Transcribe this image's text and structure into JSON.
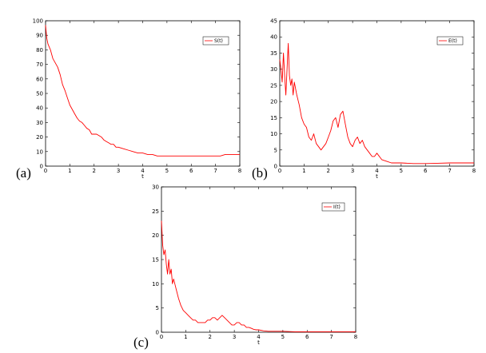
{
  "chart_data": [
    {
      "type": "line",
      "panel_label": "(a)",
      "xlabel": "t",
      "ylabel": "",
      "xlim": [
        0,
        8
      ],
      "ylim": [
        0,
        100
      ],
      "xticks": [
        0,
        1,
        2,
        3,
        4,
        5,
        6,
        7,
        8
      ],
      "yticks": [
        0,
        10,
        20,
        30,
        40,
        50,
        60,
        70,
        80,
        90,
        100
      ],
      "legend_position": "top-right",
      "series": [
        {
          "name": "S(t)",
          "color": "#ff0000",
          "x": [
            0,
            0.05,
            0.1,
            0.2,
            0.3,
            0.4,
            0.5,
            0.6,
            0.7,
            0.8,
            0.9,
            1.0,
            1.1,
            1.2,
            1.3,
            1.4,
            1.5,
            1.6,
            1.7,
            1.8,
            1.9,
            2.0,
            2.1,
            2.2,
            2.3,
            2.4,
            2.5,
            2.6,
            2.7,
            2.8,
            2.9,
            3.0,
            3.2,
            3.4,
            3.6,
            3.8,
            4.0,
            4.2,
            4.4,
            4.6,
            4.8,
            5.0,
            5.2,
            5.4,
            5.6,
            5.8,
            6.0,
            6.2,
            6.4,
            6.6,
            6.8,
            7.0,
            7.2,
            7.4,
            7.6,
            7.8,
            8.0
          ],
          "y": [
            97,
            88,
            84,
            80,
            74,
            71,
            68,
            63,
            56,
            52,
            47,
            42,
            39,
            36,
            33,
            31,
            30,
            28,
            26,
            25,
            22,
            22,
            22,
            21,
            20,
            18,
            17,
            16,
            15,
            15,
            13,
            13,
            12,
            11,
            10,
            9,
            9,
            8,
            8,
            7,
            7,
            7,
            7,
            7,
            7,
            7,
            7,
            7,
            7,
            7,
            7,
            7,
            7,
            8,
            8,
            8,
            8
          ]
        }
      ]
    },
    {
      "type": "line",
      "panel_label": "(b)",
      "xlabel": "t",
      "ylabel": "",
      "xlim": [
        0,
        8
      ],
      "ylim": [
        0,
        45
      ],
      "xticks": [
        0,
        1,
        2,
        3,
        4,
        5,
        6,
        7,
        8
      ],
      "yticks": [
        0,
        5,
        10,
        15,
        20,
        25,
        30,
        35,
        40,
        45
      ],
      "legend_position": "top-right",
      "series": [
        {
          "name": "E(t)",
          "color": "#ff0000",
          "x": [
            0,
            0.05,
            0.1,
            0.15,
            0.2,
            0.25,
            0.3,
            0.35,
            0.4,
            0.45,
            0.5,
            0.55,
            0.6,
            0.7,
            0.8,
            0.9,
            1.0,
            1.1,
            1.2,
            1.3,
            1.4,
            1.5,
            1.6,
            1.7,
            1.8,
            1.9,
            2.0,
            2.1,
            2.2,
            2.3,
            2.4,
            2.5,
            2.6,
            2.7,
            2.8,
            2.9,
            3.0,
            3.1,
            3.2,
            3.3,
            3.4,
            3.5,
            3.6,
            3.7,
            3.8,
            3.9,
            4.0,
            4.2,
            4.4,
            4.6,
            4.8,
            5.0,
            5.5,
            6.0,
            6.5,
            7.0,
            7.5,
            8.0
          ],
          "y": [
            33,
            30,
            26,
            35,
            28,
            22,
            30,
            38,
            28,
            25,
            27,
            22,
            26,
            22,
            19,
            15,
            13,
            12,
            9,
            8,
            10,
            7,
            6,
            5,
            6,
            7,
            9,
            11,
            14,
            15,
            12,
            16,
            17,
            13,
            9,
            7,
            6,
            8,
            9,
            7,
            8,
            6,
            5,
            4,
            3,
            3,
            4,
            2,
            1.5,
            1,
            1,
            1,
            0.8,
            0.8,
            0.9,
            1,
            1,
            1
          ]
        }
      ]
    },
    {
      "type": "line",
      "panel_label": "(c)",
      "xlabel": "t",
      "ylabel": "",
      "xlim": [
        0,
        8
      ],
      "ylim": [
        0,
        30
      ],
      "xticks": [
        0,
        1,
        2,
        3,
        4,
        5,
        6,
        7,
        8
      ],
      "yticks": [
        0,
        5,
        10,
        15,
        20,
        25,
        30
      ],
      "legend_position": "top-right",
      "series": [
        {
          "name": "I(t)",
          "color": "#ff0000",
          "x": [
            0,
            0.05,
            0.1,
            0.15,
            0.2,
            0.25,
            0.3,
            0.35,
            0.4,
            0.45,
            0.5,
            0.55,
            0.6,
            0.7,
            0.8,
            0.9,
            1.0,
            1.1,
            1.2,
            1.3,
            1.4,
            1.5,
            1.6,
            1.7,
            1.8,
            1.9,
            2.0,
            2.1,
            2.2,
            2.3,
            2.4,
            2.5,
            2.6,
            2.7,
            2.8,
            2.9,
            3.0,
            3.1,
            3.2,
            3.3,
            3.4,
            3.5,
            3.6,
            3.7,
            3.8,
            3.9,
            4.0,
            4.2,
            4.4,
            4.6,
            4.8,
            5.0,
            5.5,
            6.0,
            6.5,
            7.0,
            7.5,
            8.0
          ],
          "y": [
            23,
            18,
            16,
            17,
            14,
            12,
            15,
            12,
            13,
            10,
            11,
            10,
            9,
            7,
            5.5,
            4.5,
            4,
            3.5,
            3,
            2.5,
            2.5,
            2,
            2,
            2,
            2,
            2.5,
            2.5,
            3,
            3,
            2.5,
            3,
            3.5,
            3,
            2.5,
            2,
            1.5,
            1.5,
            2,
            2,
            1.5,
            1.5,
            1,
            1,
            0.8,
            0.6,
            0.5,
            0.5,
            0.3,
            0.2,
            0.2,
            0.2,
            0.2,
            0.1,
            0.1,
            0.1,
            0.1,
            0.1,
            0.1
          ]
        }
      ]
    }
  ]
}
